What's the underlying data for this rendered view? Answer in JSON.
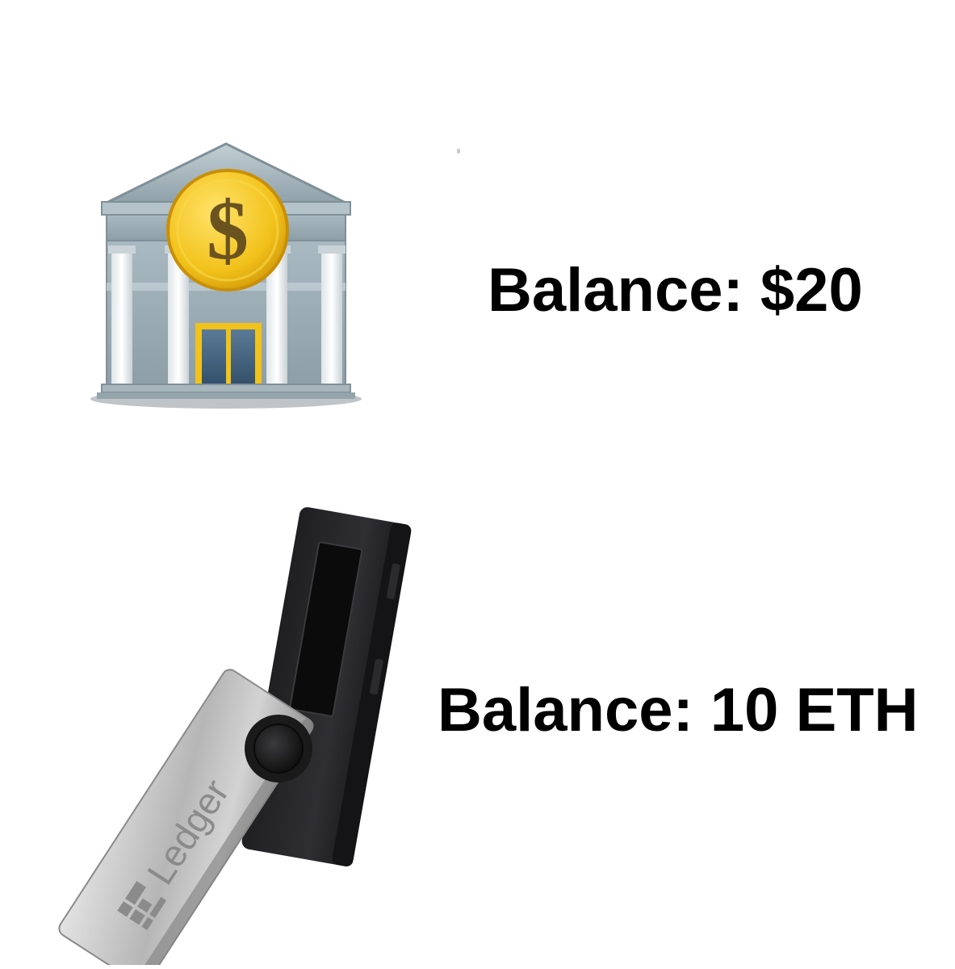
{
  "panels": [
    {
      "image": "bank-building-icon",
      "balance_label": "Balance: $20"
    },
    {
      "image": "hardware-wallet-icon",
      "device_brand": "Ledger",
      "balance_label": "Balance: 10 ETH"
    }
  ],
  "colors": {
    "background": "#ffffff",
    "text": "#000000",
    "bank_stone": "#9fb0b8",
    "coin_gold": "#f2c21b",
    "door_gold": "#f1c21a",
    "door_glass": "#3b5a75",
    "wallet_body": "#2a2a2c",
    "wallet_metal": "#b9b9b9"
  }
}
